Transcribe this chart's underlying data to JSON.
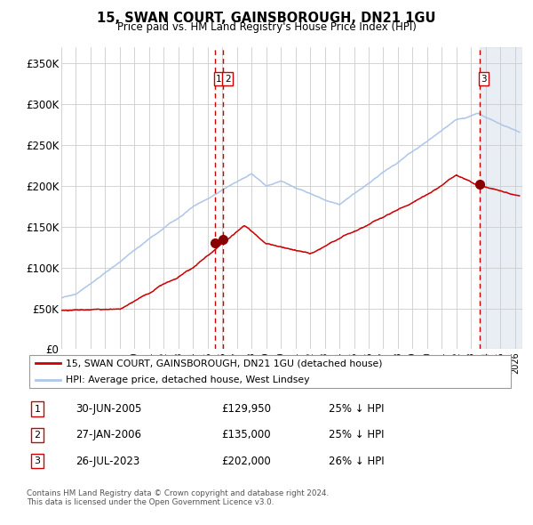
{
  "title": "15, SWAN COURT, GAINSBOROUGH, DN21 1GU",
  "subtitle": "Price paid vs. HM Land Registry's House Price Index (HPI)",
  "background_color": "#ffffff",
  "plot_bg_color": "#ffffff",
  "grid_color": "#cccccc",
  "hpi_color": "#aec6e8",
  "price_color": "#cc0000",
  "sale_marker_color": "#880000",
  "dashed_line_color": "#cc0000",
  "shade_color": "#d0d8e8",
  "legend_label_price": "15, SWAN COURT, GAINSBOROUGH, DN21 1GU (detached house)",
  "legend_label_hpi": "HPI: Average price, detached house, West Lindsey",
  "sale_dates": [
    2005.496,
    2006.073,
    2023.562
  ],
  "sale_prices": [
    129950,
    135000,
    202000
  ],
  "sale_labels": [
    "1",
    "2",
    "3"
  ],
  "sale_info": [
    {
      "label": "1",
      "date": "30-JUN-2005",
      "price": "£129,950",
      "note": "25% ↓ HPI"
    },
    {
      "label": "2",
      "date": "27-JAN-2006",
      "price": "£135,000",
      "note": "25% ↓ HPI"
    },
    {
      "label": "3",
      "date": "26-JUL-2023",
      "price": "£202,000",
      "note": "26% ↓ HPI"
    }
  ],
  "footer": "Contains HM Land Registry data © Crown copyright and database right 2024.\nThis data is licensed under the Open Government Licence v3.0.",
  "xmin": 1995.0,
  "xmax": 2026.5,
  "ymin": 0,
  "ymax": 370000,
  "yticks": [
    0,
    50000,
    100000,
    150000,
    200000,
    250000,
    300000,
    350000
  ],
  "ytick_labels": [
    "£0",
    "£50K",
    "£100K",
    "£150K",
    "£200K",
    "£250K",
    "£300K",
    "£350K"
  ],
  "shade_start": 2023.562,
  "shade_end": 2026.5
}
